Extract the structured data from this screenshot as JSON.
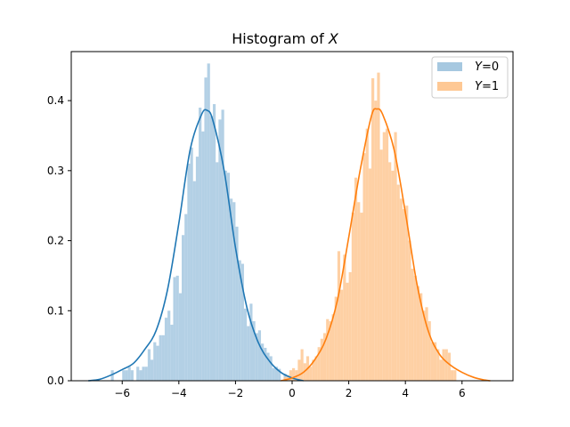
{
  "chart_data": {
    "type": "histogram",
    "title_prefix": "Histogram of ",
    "title_var": "X",
    "xlabel": "",
    "ylabel": "",
    "xlim": [
      -7.8,
      7.8
    ],
    "ylim": [
      0,
      0.47
    ],
    "xticks": [
      -6,
      -4,
      -2,
      0,
      2,
      4,
      6
    ],
    "xtick_labels": [
      "−6",
      "−4",
      "−2",
      "0",
      "2",
      "4",
      "6"
    ],
    "yticks": [
      0.0,
      0.1,
      0.2,
      0.3,
      0.4
    ],
    "ytick_labels": [
      "0.0",
      "0.1",
      "0.2",
      "0.3",
      "0.4"
    ],
    "grid": false,
    "legend_position": "top-right",
    "series": [
      {
        "name": "Y=0",
        "legend_var": "Y",
        "legend_value": "=0",
        "bar_color": "#a6c8e0",
        "line_color": "#1f77b4",
        "bin_width": 0.1,
        "bins": [
          [
            -6.4,
            0.015
          ],
          [
            -6.3,
            0.0
          ],
          [
            -6.2,
            0.0
          ],
          [
            -6.1,
            0.0
          ],
          [
            -6.0,
            0.015
          ],
          [
            -5.9,
            0.015
          ],
          [
            -5.8,
            0.02
          ],
          [
            -5.7,
            0.015
          ],
          [
            -5.6,
            0.0
          ],
          [
            -5.5,
            0.02
          ],
          [
            -5.4,
            0.015
          ],
          [
            -5.3,
            0.02
          ],
          [
            -5.2,
            0.02
          ],
          [
            -5.1,
            0.045
          ],
          [
            -5.0,
            0.03
          ],
          [
            -4.9,
            0.055
          ],
          [
            -4.8,
            0.05
          ],
          [
            -4.7,
            0.065
          ],
          [
            -4.6,
            0.065
          ],
          [
            -4.5,
            0.09
          ],
          [
            -4.4,
            0.1
          ],
          [
            -4.3,
            0.08
          ],
          [
            -4.2,
            0.148
          ],
          [
            -4.1,
            0.15
          ],
          [
            -4.0,
            0.125
          ],
          [
            -3.9,
            0.208
          ],
          [
            -3.8,
            0.238
          ],
          [
            -3.7,
            0.31
          ],
          [
            -3.6,
            0.333
          ],
          [
            -3.5,
            0.285
          ],
          [
            -3.4,
            0.32
          ],
          [
            -3.3,
            0.39
          ],
          [
            -3.2,
            0.356
          ],
          [
            -3.1,
            0.433
          ],
          [
            -3.0,
            0.453
          ],
          [
            -2.9,
            0.378
          ],
          [
            -2.8,
            0.395
          ],
          [
            -2.7,
            0.312
          ],
          [
            -2.6,
            0.373
          ],
          [
            -2.5,
            0.387
          ],
          [
            -2.4,
            0.3
          ],
          [
            -2.3,
            0.297
          ],
          [
            -2.2,
            0.26
          ],
          [
            -2.1,
            0.255
          ],
          [
            -2.0,
            0.22
          ],
          [
            -1.9,
            0.172
          ],
          [
            -1.8,
            0.167
          ],
          [
            -1.7,
            0.103
          ],
          [
            -1.6,
            0.078
          ],
          [
            -1.5,
            0.11
          ],
          [
            -1.4,
            0.085
          ],
          [
            -1.3,
            0.068
          ],
          [
            -1.2,
            0.072
          ],
          [
            -1.1,
            0.053
          ],
          [
            -1.0,
            0.047
          ],
          [
            -0.9,
            0.04
          ],
          [
            -0.8,
            0.035
          ],
          [
            -0.7,
            0.018
          ],
          [
            -0.6,
            0.02
          ],
          [
            -0.5,
            0.017
          ],
          [
            -0.4,
            0.0
          ],
          [
            -0.3,
            0.01
          ],
          [
            -0.2,
            0.0
          ],
          [
            -0.1,
            0.0
          ],
          [
            0.0,
            0.0
          ],
          [
            0.1,
            0.0
          ],
          [
            0.2,
            0.0
          ],
          [
            0.3,
            0.0
          ],
          [
            0.4,
            0.0
          ],
          [
            0.5,
            0.0
          ],
          [
            0.6,
            0.0
          ],
          [
            0.7,
            0.0
          ],
          [
            0.8,
            0.0
          ]
        ],
        "kde_x": [
          -7.2,
          -6.8,
          -6.4,
          -6.0,
          -5.6,
          -5.2,
          -4.8,
          -4.4,
          -4.0,
          -3.6,
          -3.2,
          -3.0,
          -2.8,
          -2.4,
          -2.0,
          -1.6,
          -1.2,
          -0.8,
          -0.4,
          0.0,
          0.4
        ],
        "kde_y": [
          0.0,
          0.002,
          0.008,
          0.016,
          0.025,
          0.045,
          0.072,
          0.13,
          0.225,
          0.33,
          0.38,
          0.386,
          0.372,
          0.3,
          0.19,
          0.105,
          0.055,
          0.028,
          0.012,
          0.004,
          0.0
        ]
      },
      {
        "name": "Y=1",
        "legend_var": "Y",
        "legend_value": "=1",
        "bar_color": "#fec894",
        "line_color": "#ff7f0e",
        "bin_width": 0.1,
        "bins": [
          [
            -0.3,
            0.005
          ],
          [
            -0.2,
            0.008
          ],
          [
            -0.1,
            0.015
          ],
          [
            0.0,
            0.018
          ],
          [
            0.1,
            0.015
          ],
          [
            0.2,
            0.03
          ],
          [
            0.3,
            0.045
          ],
          [
            0.4,
            0.025
          ],
          [
            0.5,
            0.035
          ],
          [
            0.6,
            0.02
          ],
          [
            0.7,
            0.03
          ],
          [
            0.8,
            0.035
          ],
          [
            0.9,
            0.048
          ],
          [
            1.0,
            0.06
          ],
          [
            1.1,
            0.068
          ],
          [
            1.2,
            0.088
          ],
          [
            1.3,
            0.085
          ],
          [
            1.4,
            0.095
          ],
          [
            1.5,
            0.12
          ],
          [
            1.6,
            0.185
          ],
          [
            1.7,
            0.13
          ],
          [
            1.8,
            0.18
          ],
          [
            1.9,
            0.14
          ],
          [
            2.0,
            0.155
          ],
          [
            2.1,
            0.24
          ],
          [
            2.2,
            0.29
          ],
          [
            2.3,
            0.255
          ],
          [
            2.4,
            0.24
          ],
          [
            2.5,
            0.325
          ],
          [
            2.6,
            0.36
          ],
          [
            2.7,
            0.303
          ],
          [
            2.8,
            0.432
          ],
          [
            2.9,
            0.4
          ],
          [
            3.0,
            0.44
          ],
          [
            3.1,
            0.33
          ],
          [
            3.2,
            0.355
          ],
          [
            3.3,
            0.36
          ],
          [
            3.4,
            0.312
          ],
          [
            3.5,
            0.3
          ],
          [
            3.6,
            0.355
          ],
          [
            3.7,
            0.28
          ],
          [
            3.8,
            0.26
          ],
          [
            3.9,
            0.245
          ],
          [
            4.0,
            0.25
          ],
          [
            4.1,
            0.2
          ],
          [
            4.2,
            0.16
          ],
          [
            4.3,
            0.15
          ],
          [
            4.4,
            0.135
          ],
          [
            4.5,
            0.125
          ],
          [
            4.6,
            0.1
          ],
          [
            4.7,
            0.105
          ],
          [
            4.8,
            0.085
          ],
          [
            4.9,
            0.055
          ],
          [
            5.0,
            0.055
          ],
          [
            5.1,
            0.045
          ],
          [
            5.2,
            0.03
          ],
          [
            5.3,
            0.045
          ],
          [
            5.4,
            0.045
          ],
          [
            5.5,
            0.04
          ],
          [
            5.6,
            0.015
          ],
          [
            5.7,
            0.015
          ]
        ],
        "kde_x": [
          -0.4,
          0.0,
          0.4,
          0.8,
          1.2,
          1.6,
          2.0,
          2.4,
          2.8,
          3.0,
          3.2,
          3.6,
          4.0,
          4.4,
          4.8,
          5.2,
          5.6,
          6.0,
          6.4,
          6.8,
          7.0
        ],
        "kde_y": [
          0.0,
          0.004,
          0.012,
          0.03,
          0.06,
          0.115,
          0.205,
          0.3,
          0.378,
          0.388,
          0.38,
          0.33,
          0.24,
          0.14,
          0.072,
          0.038,
          0.022,
          0.012,
          0.005,
          0.001,
          0.0
        ]
      }
    ]
  }
}
